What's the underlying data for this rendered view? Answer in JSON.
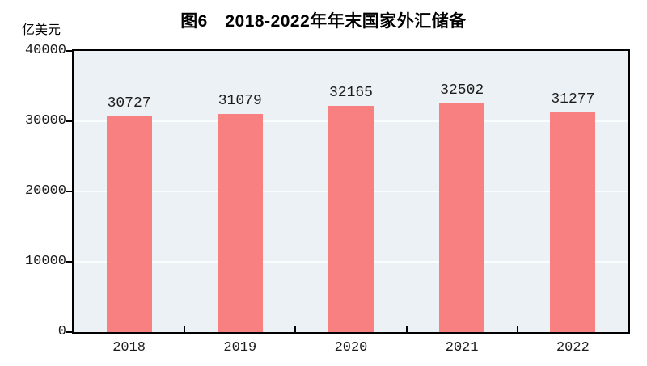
{
  "figure": {
    "title": "图6　2018-2022年年末国家外汇储备",
    "unit_label": "亿美元"
  },
  "chart_data": {
    "type": "bar",
    "title": "图6 2018-2022年年末国家外汇储备",
    "ylabel": "亿美元",
    "xlabel": "",
    "categories": [
      "2018",
      "2019",
      "2020",
      "2021",
      "2022"
    ],
    "values": [
      30727,
      31079,
      32165,
      32502,
      31277
    ],
    "data_labels": [
      "30727",
      "31079",
      "32165",
      "32502",
      "31277"
    ],
    "ylim": [
      0,
      40000
    ],
    "yticks": [
      0,
      10000,
      20000,
      30000,
      40000
    ],
    "grid": "horizontal-faint-white",
    "legend": "none",
    "bar_color": "#F98080",
    "plot_background": "#ECF1F5",
    "gridline_color": "#FAFDFE",
    "axis_color": "#000000"
  }
}
